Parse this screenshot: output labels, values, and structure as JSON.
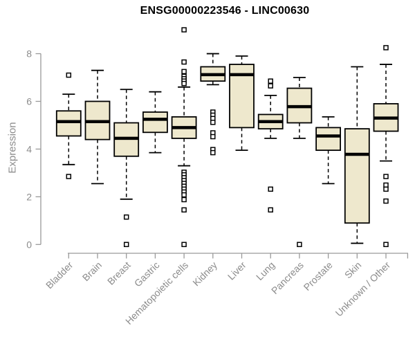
{
  "chart_data": {
    "type": "boxplot",
    "title": "ENSG00000223546 - LINC00630",
    "ylabel": "Expression",
    "xlabel": "",
    "ylim": [
      0,
      8
    ],
    "yticks": [
      0,
      2,
      4,
      6,
      8
    ],
    "grid": false,
    "legend": false,
    "categories": [
      "Bladder",
      "Brain",
      "Breast",
      "Gastric",
      "Hematopoietic cells",
      "Kidney",
      "Liver",
      "Lung",
      "Pancreas",
      "Prostate",
      "Skin",
      "Unknown / Other"
    ],
    "boxes": [
      {
        "category": "Bladder",
        "whisker_low": 3.35,
        "q1": 4.55,
        "median": 5.15,
        "q3": 5.6,
        "whisker_high": 6.3,
        "outliers": [
          7.1,
          2.85
        ]
      },
      {
        "category": "Brain",
        "whisker_low": 2.55,
        "q1": 4.4,
        "median": 5.15,
        "q3": 6.0,
        "whisker_high": 7.3,
        "outliers": []
      },
      {
        "category": "Breast",
        "whisker_low": 1.9,
        "q1": 3.7,
        "median": 4.45,
        "q3": 5.1,
        "whisker_high": 6.5,
        "outliers": [
          1.15,
          0.0
        ]
      },
      {
        "category": "Gastric",
        "whisker_low": 3.85,
        "q1": 4.7,
        "median": 5.25,
        "q3": 5.55,
        "whisker_high": 6.4,
        "outliers": []
      },
      {
        "category": "Hematopoietic cells",
        "whisker_low": 3.3,
        "q1": 4.45,
        "median": 4.9,
        "q3": 5.35,
        "whisker_high": 6.6,
        "outliers": [
          9.0,
          7.65,
          7.25,
          7.05,
          6.95,
          6.85,
          6.75,
          3.03,
          2.92,
          2.8,
          2.68,
          2.56,
          2.44,
          2.32,
          2.2,
          2.08,
          1.88,
          1.45,
          0.0
        ]
      },
      {
        "category": "Kidney",
        "whisker_low": 6.7,
        "q1": 6.85,
        "median": 7.12,
        "q3": 7.45,
        "whisker_high": 8.0,
        "outliers": [
          5.55,
          5.42,
          5.28,
          5.12,
          4.68,
          4.52,
          3.98,
          3.85
        ]
      },
      {
        "category": "Liver",
        "whisker_low": 3.95,
        "q1": 4.9,
        "median": 7.12,
        "q3": 7.55,
        "whisker_high": 7.9,
        "outliers": []
      },
      {
        "category": "Lung",
        "whisker_low": 4.45,
        "q1": 4.85,
        "median": 5.15,
        "q3": 5.45,
        "whisker_high": 6.25,
        "outliers": [
          6.85,
          6.65,
          2.32,
          1.45
        ]
      },
      {
        "category": "Pancreas",
        "whisker_low": 4.45,
        "q1": 5.1,
        "median": 5.78,
        "q3": 6.55,
        "whisker_high": 7.0,
        "outliers": [
          0.0
        ]
      },
      {
        "category": "Prostate",
        "whisker_low": 2.55,
        "q1": 3.95,
        "median": 4.55,
        "q3": 4.9,
        "whisker_high": 5.35,
        "outliers": []
      },
      {
        "category": "Skin",
        "whisker_low": 0.05,
        "q1": 0.9,
        "median": 3.78,
        "q3": 4.85,
        "whisker_high": 7.45,
        "outliers": []
      },
      {
        "category": "Unknown / Other",
        "whisker_low": 3.5,
        "q1": 4.75,
        "median": 5.3,
        "q3": 5.9,
        "whisker_high": 7.55,
        "outliers": [
          8.25,
          2.85,
          2.49,
          2.32,
          1.82,
          0.0
        ]
      }
    ],
    "colors": {
      "box_fill": "#eee8cd",
      "box_border": "#000000",
      "median": "#000000",
      "whisker": "#000000",
      "outlier_fill": "#ffffff",
      "axis": "#999999",
      "tick_text": "#8c8c8c",
      "title_text": "#000000",
      "background": "#ffffff"
    }
  }
}
